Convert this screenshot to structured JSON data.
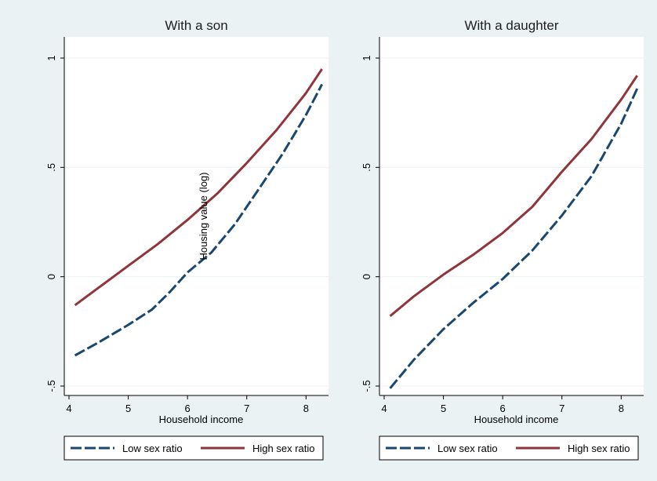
{
  "chart_data": [
    {
      "type": "line",
      "title": "With a son",
      "xlabel": "Household income",
      "ylabel": "Housing value (log)",
      "xlim": [
        4,
        8.3
      ],
      "ylim": [
        -0.5,
        1
      ],
      "xticks": [
        4,
        5,
        6,
        7,
        8
      ],
      "yticks": [
        -0.5,
        0,
        0.5,
        1
      ],
      "ytick_labels": [
        "-.5",
        "0",
        ".5",
        "1"
      ],
      "grid": true,
      "legend": "bottom",
      "series": [
        {
          "name": "Low sex ratio",
          "color": "#1a476f",
          "dash": "dashed",
          "x": [
            4.1,
            4.5,
            5.0,
            5.4,
            5.7,
            6.0,
            6.4,
            6.8,
            7.2,
            7.6,
            8.0,
            8.27
          ],
          "y": [
            -0.36,
            -0.3,
            -0.22,
            -0.15,
            -0.07,
            0.02,
            0.11,
            0.24,
            0.4,
            0.56,
            0.74,
            0.88
          ]
        },
        {
          "name": "High sex ratio",
          "color": "#90353b",
          "dash": "solid",
          "x": [
            4.1,
            4.5,
            5.0,
            5.5,
            6.0,
            6.5,
            7.0,
            7.5,
            8.0,
            8.27
          ],
          "y": [
            -0.13,
            -0.05,
            0.05,
            0.15,
            0.26,
            0.38,
            0.52,
            0.67,
            0.84,
            0.95
          ]
        }
      ]
    },
    {
      "type": "line",
      "title": "With a daughter",
      "xlabel": "Household income",
      "ylabel": "",
      "xlim": [
        4,
        8.3
      ],
      "ylim": [
        -0.5,
        1
      ],
      "xticks": [
        4,
        5,
        6,
        7,
        8
      ],
      "yticks": [
        -0.5,
        0,
        0.5,
        1
      ],
      "ytick_labels": [
        "-.5",
        "0",
        ".5",
        "1"
      ],
      "grid": true,
      "legend": "bottom",
      "series": [
        {
          "name": "Low sex ratio",
          "color": "#1a476f",
          "dash": "dashed",
          "x": [
            4.1,
            4.5,
            5.0,
            5.5,
            6.0,
            6.5,
            7.0,
            7.5,
            8.0,
            8.27
          ],
          "y": [
            -0.51,
            -0.38,
            -0.24,
            -0.12,
            -0.01,
            0.12,
            0.28,
            0.46,
            0.7,
            0.86
          ]
        },
        {
          "name": "High sex ratio",
          "color": "#90353b",
          "dash": "solid",
          "x": [
            4.1,
            4.5,
            5.0,
            5.5,
            6.0,
            6.5,
            7.0,
            7.5,
            8.0,
            8.27
          ],
          "y": [
            -0.18,
            -0.09,
            0.01,
            0.1,
            0.2,
            0.32,
            0.48,
            0.63,
            0.81,
            0.92
          ]
        }
      ]
    }
  ]
}
